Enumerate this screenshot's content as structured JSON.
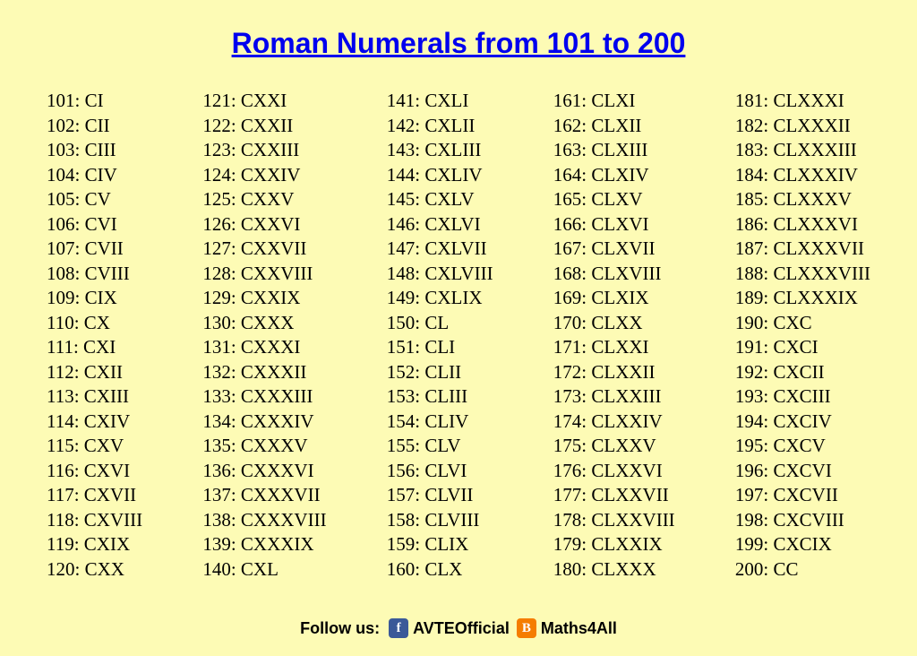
{
  "title": "Roman Numerals from 101 to 200",
  "background_color": "#fdfbb5",
  "title_color": "#0000ee",
  "text_color": "#000000",
  "body_font_size": 21,
  "title_font_size": 32,
  "columns": [
    [
      {
        "n": 101,
        "r": "CI"
      },
      {
        "n": 102,
        "r": "CII"
      },
      {
        "n": 103,
        "r": "CIII"
      },
      {
        "n": 104,
        "r": "CIV"
      },
      {
        "n": 105,
        "r": "CV"
      },
      {
        "n": 106,
        "r": "CVI"
      },
      {
        "n": 107,
        "r": "CVII"
      },
      {
        "n": 108,
        "r": "CVIII"
      },
      {
        "n": 109,
        "r": "CIX"
      },
      {
        "n": 110,
        "r": "CX"
      },
      {
        "n": 111,
        "r": "CXI"
      },
      {
        "n": 112,
        "r": "CXII"
      },
      {
        "n": 113,
        "r": "CXIII"
      },
      {
        "n": 114,
        "r": "CXIV"
      },
      {
        "n": 115,
        "r": "CXV"
      },
      {
        "n": 116,
        "r": "CXVI"
      },
      {
        "n": 117,
        "r": "CXVII"
      },
      {
        "n": 118,
        "r": "CXVIII"
      },
      {
        "n": 119,
        "r": "CXIX"
      },
      {
        "n": 120,
        "r": "CXX"
      }
    ],
    [
      {
        "n": 121,
        "r": "CXXI"
      },
      {
        "n": 122,
        "r": "CXXII"
      },
      {
        "n": 123,
        "r": "CXXIII"
      },
      {
        "n": 124,
        "r": "CXXIV"
      },
      {
        "n": 125,
        "r": "CXXV"
      },
      {
        "n": 126,
        "r": "CXXVI"
      },
      {
        "n": 127,
        "r": "CXXVII"
      },
      {
        "n": 128,
        "r": "CXXVIII"
      },
      {
        "n": 129,
        "r": "CXXIX"
      },
      {
        "n": 130,
        "r": "CXXX"
      },
      {
        "n": 131,
        "r": "CXXXI"
      },
      {
        "n": 132,
        "r": "CXXXII"
      },
      {
        "n": 133,
        "r": "CXXXIII"
      },
      {
        "n": 134,
        "r": "CXXXIV"
      },
      {
        "n": 135,
        "r": "CXXXV"
      },
      {
        "n": 136,
        "r": "CXXXVI"
      },
      {
        "n": 137,
        "r": "CXXXVII"
      },
      {
        "n": 138,
        "r": "CXXXVIII"
      },
      {
        "n": 139,
        "r": "CXXXIX"
      },
      {
        "n": 140,
        "r": "CXL"
      }
    ],
    [
      {
        "n": 141,
        "r": "CXLI"
      },
      {
        "n": 142,
        "r": "CXLII"
      },
      {
        "n": 143,
        "r": "CXLIII"
      },
      {
        "n": 144,
        "r": "CXLIV"
      },
      {
        "n": 145,
        "r": "CXLV"
      },
      {
        "n": 146,
        "r": "CXLVI"
      },
      {
        "n": 147,
        "r": "CXLVII"
      },
      {
        "n": 148,
        "r": "CXLVIII"
      },
      {
        "n": 149,
        "r": "CXLIX"
      },
      {
        "n": 150,
        "r": "CL"
      },
      {
        "n": 151,
        "r": "CLI"
      },
      {
        "n": 152,
        "r": "CLII"
      },
      {
        "n": 153,
        "r": "CLIII"
      },
      {
        "n": 154,
        "r": "CLIV"
      },
      {
        "n": 155,
        "r": "CLV"
      },
      {
        "n": 156,
        "r": "CLVI"
      },
      {
        "n": 157,
        "r": "CLVII"
      },
      {
        "n": 158,
        "r": "CLVIII"
      },
      {
        "n": 159,
        "r": "CLIX"
      },
      {
        "n": 160,
        "r": "CLX"
      }
    ],
    [
      {
        "n": 161,
        "r": "CLXI"
      },
      {
        "n": 162,
        "r": "CLXII"
      },
      {
        "n": 163,
        "r": "CLXIII"
      },
      {
        "n": 164,
        "r": "CLXIV"
      },
      {
        "n": 165,
        "r": "CLXV"
      },
      {
        "n": 166,
        "r": "CLXVI"
      },
      {
        "n": 167,
        "r": "CLXVII"
      },
      {
        "n": 168,
        "r": "CLXVIII"
      },
      {
        "n": 169,
        "r": "CLXIX"
      },
      {
        "n": 170,
        "r": "CLXX"
      },
      {
        "n": 171,
        "r": "CLXXI"
      },
      {
        "n": 172,
        "r": "CLXXII"
      },
      {
        "n": 173,
        "r": "CLXXIII"
      },
      {
        "n": 174,
        "r": "CLXXIV"
      },
      {
        "n": 175,
        "r": "CLXXV"
      },
      {
        "n": 176,
        "r": "CLXXVI"
      },
      {
        "n": 177,
        "r": "CLXXVII"
      },
      {
        "n": 178,
        "r": "CLXXVIII"
      },
      {
        "n": 179,
        "r": "CLXXIX"
      },
      {
        "n": 180,
        "r": "CLXXX"
      }
    ],
    [
      {
        "n": 181,
        "r": "CLXXXI"
      },
      {
        "n": 182,
        "r": "CLXXXII"
      },
      {
        "n": 183,
        "r": "CLXXXIII"
      },
      {
        "n": 184,
        "r": "CLXXXIV"
      },
      {
        "n": 185,
        "r": "CLXXXV"
      },
      {
        "n": 186,
        "r": "CLXXXVI"
      },
      {
        "n": 187,
        "r": "CLXXXVII"
      },
      {
        "n": 188,
        "r": "CLXXXVIII"
      },
      {
        "n": 189,
        "r": "CLXXXIX"
      },
      {
        "n": 190,
        "r": "CXC"
      },
      {
        "n": 191,
        "r": "CXCI"
      },
      {
        "n": 192,
        "r": "CXCII"
      },
      {
        "n": 193,
        "r": "CXCIII"
      },
      {
        "n": 194,
        "r": "CXCIV"
      },
      {
        "n": 195,
        "r": "CXCV"
      },
      {
        "n": 196,
        "r": "CXCVI"
      },
      {
        "n": 197,
        "r": "CXCVII"
      },
      {
        "n": 198,
        "r": "CXCVIII"
      },
      {
        "n": 199,
        "r": "CXCIX"
      },
      {
        "n": 200,
        "r": "CC"
      }
    ]
  ],
  "follow": {
    "label": "Follow us:",
    "facebook_handle": "AVTEOfficial",
    "facebook_color": "#3b5998",
    "blogger_handle": "Maths4All",
    "blogger_color": "#f57d00"
  }
}
